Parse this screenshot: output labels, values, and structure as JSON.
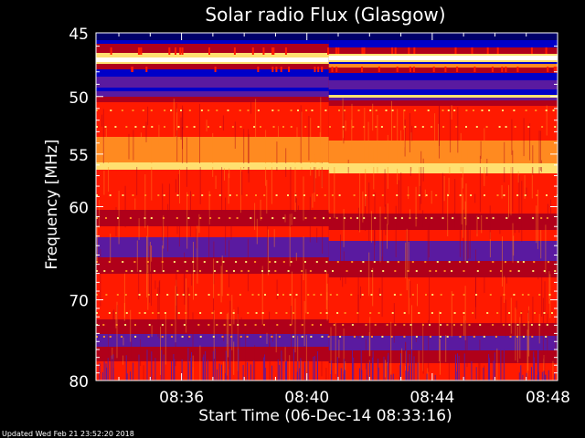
{
  "chart_data": {
    "type": "heatmap",
    "title": "Solar radio Flux (Glasgow)",
    "xlabel": "Start Time (06-Dec-14 08:33:16)",
    "ylabel": "Frequency [MHz]",
    "footer": "Updated Wed Feb 21 23:52:20 2018",
    "x_ticks": [
      "08:36",
      "08:40",
      "08:44",
      "08:48"
    ],
    "x_tick_values_min": [
      36,
      40,
      44,
      48
    ],
    "xlim_min": [
      33.27,
      48
    ],
    "y_ticks": [
      "45",
      "50",
      "55",
      "60",
      "70",
      "80"
    ],
    "y_tick_values": [
      45,
      50,
      55,
      60,
      70,
      80
    ],
    "ylim": [
      45,
      80
    ],
    "y_scale": "log",
    "y_inverted": true,
    "grid": false,
    "colormap": [
      "#000040",
      "#0000c8",
      "#5a1aa0",
      "#b0001a",
      "#ff1a00",
      "#ff8a20",
      "#ffe070",
      "#ffffff"
    ]
  }
}
